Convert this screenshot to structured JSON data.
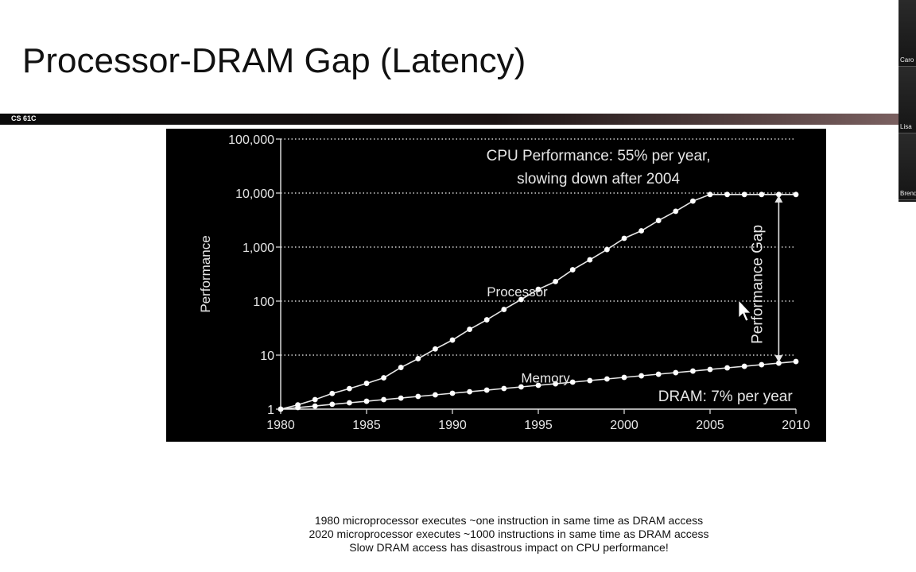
{
  "slide": {
    "title": "Processor-DRAM Gap (Latency)",
    "course_label": "CS 61C",
    "caption_lines": [
      "1980 microprocessor executes ~one instruction in same time as DRAM access",
      "2020 microprocessor executes ~1000 instructions in same time as DRAM access",
      "Slow DRAM access has disastrous impact on CPU performance!"
    ]
  },
  "participants": [
    {
      "name": "Caro"
    },
    {
      "name": "Lisa"
    },
    {
      "name": "Brend"
    }
  ],
  "chart_data": {
    "type": "line",
    "title": "",
    "xlabel": "",
    "ylabel": "Performance",
    "y_scale": "log",
    "xlim": [
      1980,
      2010
    ],
    "ylim": [
      1,
      100000
    ],
    "x_ticks": [
      1980,
      1985,
      1990,
      1995,
      2000,
      2005,
      2010
    ],
    "y_ticks": [
      1,
      10,
      100,
      1000,
      10000,
      100000
    ],
    "y_tick_labels": [
      "1",
      "10",
      "100",
      "1,000",
      "10,000",
      "100,000"
    ],
    "grid": "dotted-horizontal",
    "colors": {
      "background": "#000000",
      "lines": "#e6e6e6",
      "points": "#ffffff"
    },
    "series": [
      {
        "name": "Processor",
        "x": [
          1980,
          1981,
          1982,
          1983,
          1984,
          1985,
          1986,
          1987,
          1988,
          1989,
          1990,
          1991,
          1992,
          1993,
          1994,
          1995,
          1996,
          1997,
          1998,
          1999,
          2000,
          2001,
          2002,
          2003,
          2004,
          2005,
          2006,
          2007,
          2008,
          2009,
          2010
        ],
        "values": [
          1,
          1.2,
          1.5,
          1.95,
          2.4,
          3.0,
          3.8,
          5.9,
          8.6,
          13,
          19,
          30,
          45,
          70,
          107,
          165,
          230,
          380,
          580,
          900,
          1450,
          2000,
          3100,
          4600,
          7100,
          9400,
          9400,
          9400,
          9400,
          9400,
          9400
        ]
      },
      {
        "name": "Memory",
        "x": [
          1980,
          1981,
          1982,
          1983,
          1984,
          1985,
          1986,
          1987,
          1988,
          1989,
          1990,
          1991,
          1992,
          1993,
          1994,
          1995,
          1996,
          1997,
          1998,
          1999,
          2000,
          2001,
          2002,
          2003,
          2004,
          2005,
          2006,
          2007,
          2008,
          2009,
          2010
        ],
        "values": [
          1,
          1.07,
          1.14,
          1.23,
          1.31,
          1.4,
          1.5,
          1.6,
          1.72,
          1.84,
          1.97,
          2.1,
          2.25,
          2.41,
          2.58,
          2.76,
          2.95,
          3.16,
          3.38,
          3.62,
          3.87,
          4.14,
          4.43,
          4.74,
          5.07,
          5.43,
          5.81,
          6.21,
          6.65,
          7.11,
          7.61
        ]
      }
    ],
    "annotations": [
      {
        "id": "cpu-note",
        "lines": [
          "CPU Performance: 55% per year,",
          "slowing down after 2004"
        ]
      },
      {
        "id": "dram-note",
        "lines": [
          "DRAM: 7% per year"
        ]
      },
      {
        "id": "gap-label",
        "lines": [
          "Performance Gap"
        ]
      }
    ]
  }
}
